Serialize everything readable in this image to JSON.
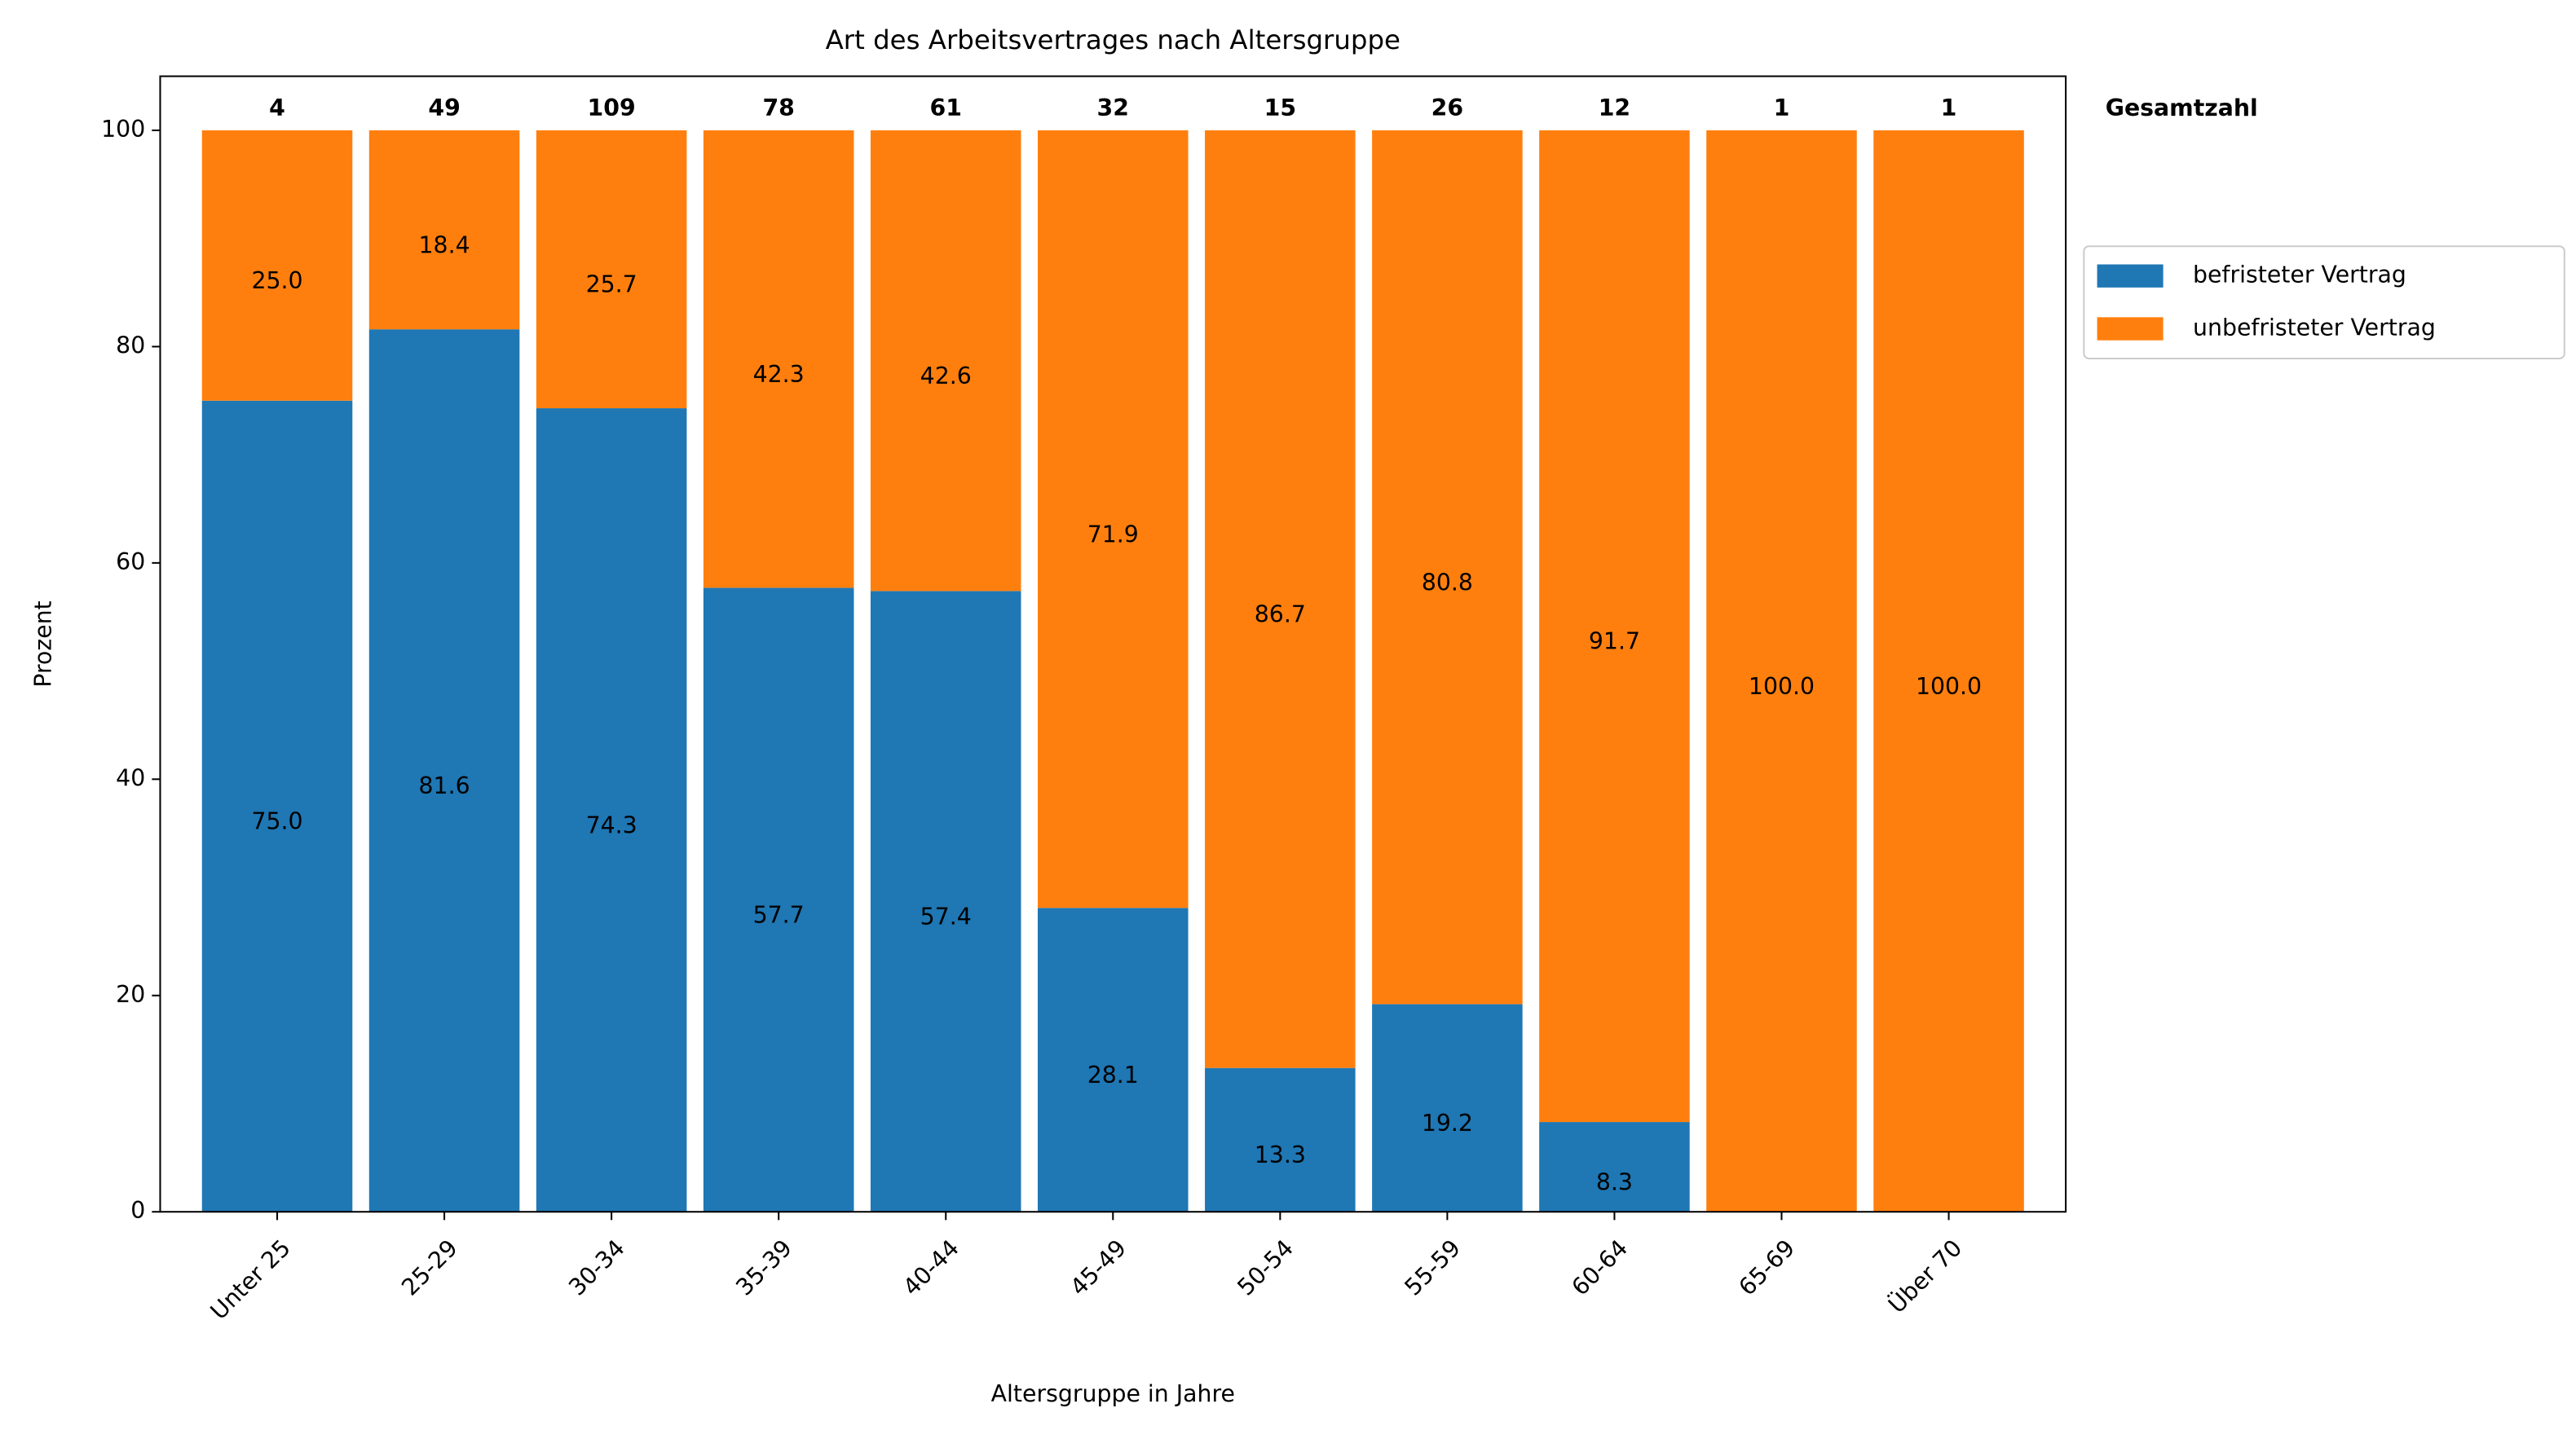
{
  "chart_data": {
    "type": "stacked_bar",
    "title": "Art des Arbeitsvertrages nach Altersgruppe",
    "x_label": "Altersgruppe in Jahre",
    "y_label": "Prozent",
    "categories": [
      "Unter 25",
      "25-29",
      "30-34",
      "35-39",
      "40-44",
      "45-49",
      "50-54",
      "55-59",
      "60-64",
      "65-69",
      "Über 70"
    ],
    "series": [
      {
        "name": "befristeter Vertrag",
        "color": "#1f77b4",
        "values": [
          75.0,
          81.6,
          74.3,
          57.7,
          57.4,
          28.1,
          13.3,
          19.2,
          8.3,
          0,
          0
        ],
        "value_labels": [
          "75.0",
          "81.6",
          "74.3",
          "57.7",
          "57.4",
          "28.1",
          "13.3",
          "19.2",
          "8.3",
          null,
          null
        ]
      },
      {
        "name": "unbefristeter Vertrag",
        "color": "#ff7f0e",
        "values": [
          25.0,
          18.4,
          25.7,
          42.3,
          42.6,
          71.9,
          86.7,
          80.8,
          91.7,
          100.0,
          100.0
        ],
        "value_labels": [
          "25.0",
          "18.4",
          "25.7",
          "42.3",
          "42.6",
          "71.9",
          "86.7",
          "80.8",
          "91.7",
          "100.0",
          "100.0"
        ]
      }
    ],
    "totals": {
      "label": "Gesamtzahl",
      "values": [
        4,
        49,
        109,
        78,
        61,
        32,
        15,
        26,
        12,
        1,
        1
      ]
    },
    "ylim": [
      0,
      105
    ],
    "yticks": [
      0,
      20,
      40,
      60,
      80,
      100
    ],
    "legend": "outside-right"
  }
}
